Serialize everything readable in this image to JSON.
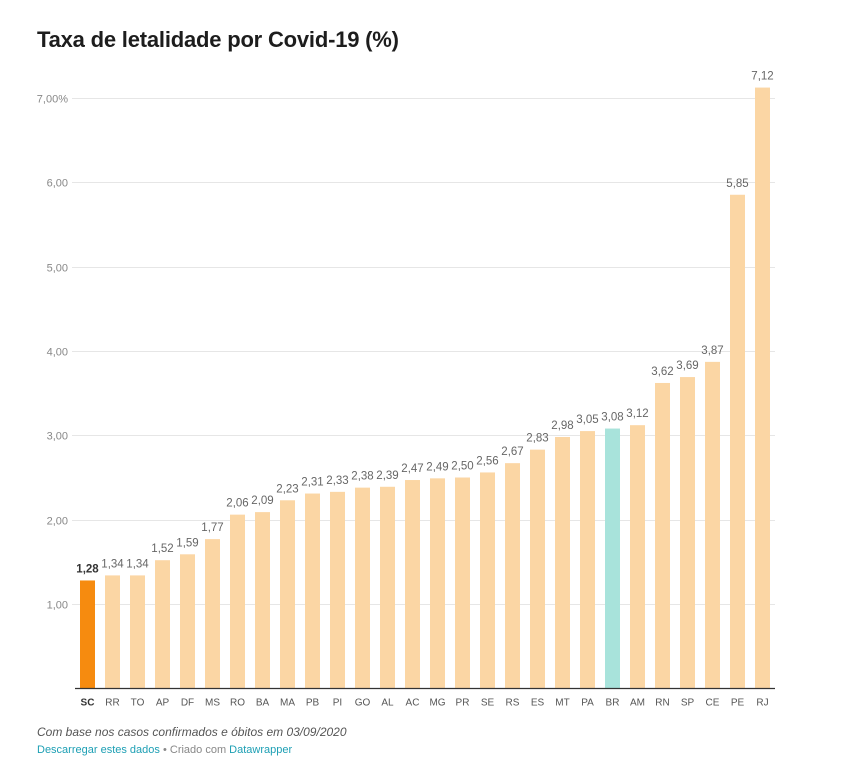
{
  "chart_data": {
    "type": "bar",
    "title": "Taxa de letalidade por Covid-19 (%)",
    "xlabel": "",
    "ylabel": "",
    "ylim": [
      0,
      7.5
    ],
    "yticks": [
      {
        "value": 1,
        "label": "1,00"
      },
      {
        "value": 2,
        "label": "2,00"
      },
      {
        "value": 3,
        "label": "3,00"
      },
      {
        "value": 4,
        "label": "4,00"
      },
      {
        "value": 5,
        "label": "5,00"
      },
      {
        "value": 6,
        "label": "6,00"
      },
      {
        "value": 7,
        "label": "7,00%"
      }
    ],
    "grid": true,
    "categories": [
      "SC",
      "RR",
      "TO",
      "AP",
      "DF",
      "MS",
      "RO",
      "BA",
      "MA",
      "PB",
      "PI",
      "GO",
      "AL",
      "AC",
      "MG",
      "PR",
      "SE",
      "RS",
      "ES",
      "MT",
      "PA",
      "BR",
      "AM",
      "RN",
      "SP",
      "CE",
      "PE",
      "RJ"
    ],
    "values": [
      1.28,
      1.34,
      1.34,
      1.52,
      1.59,
      1.77,
      2.06,
      2.09,
      2.23,
      2.31,
      2.33,
      2.38,
      2.39,
      2.47,
      2.49,
      2.5,
      2.56,
      2.67,
      2.83,
      2.98,
      3.05,
      3.08,
      3.12,
      3.62,
      3.69,
      3.87,
      5.85,
      7.12
    ],
    "value_labels": [
      "1,28",
      "1,34",
      "1,34",
      "1,52",
      "1,59",
      "1,77",
      "2,06",
      "2,09",
      "2,23",
      "2,31",
      "2,33",
      "2,38",
      "2,39",
      "2,47",
      "2,49",
      "2,50",
      "2,56",
      "2,67",
      "2,83",
      "2,98",
      "3,05",
      "3,08",
      "3,12",
      "3,62",
      "3,69",
      "3,87",
      "5,85",
      "7,12"
    ],
    "highlight": {
      "SC": "highlight",
      "BR": "reference"
    }
  },
  "colors": {
    "bar_default": "#fbd6a4",
    "bar_highlight": "#f68b0f",
    "bar_reference": "#a8e3db",
    "grid": "#e6e6e6",
    "axis": "#333333",
    "tick_label": "#888888",
    "value_label": "#666666"
  },
  "footer": {
    "note": "Com base nos casos confirmados e óbitos em 03/09/2020",
    "download_link": "Descarregar estes dados",
    "separator": " • Criado com ",
    "credit_link": "Datawrapper"
  }
}
